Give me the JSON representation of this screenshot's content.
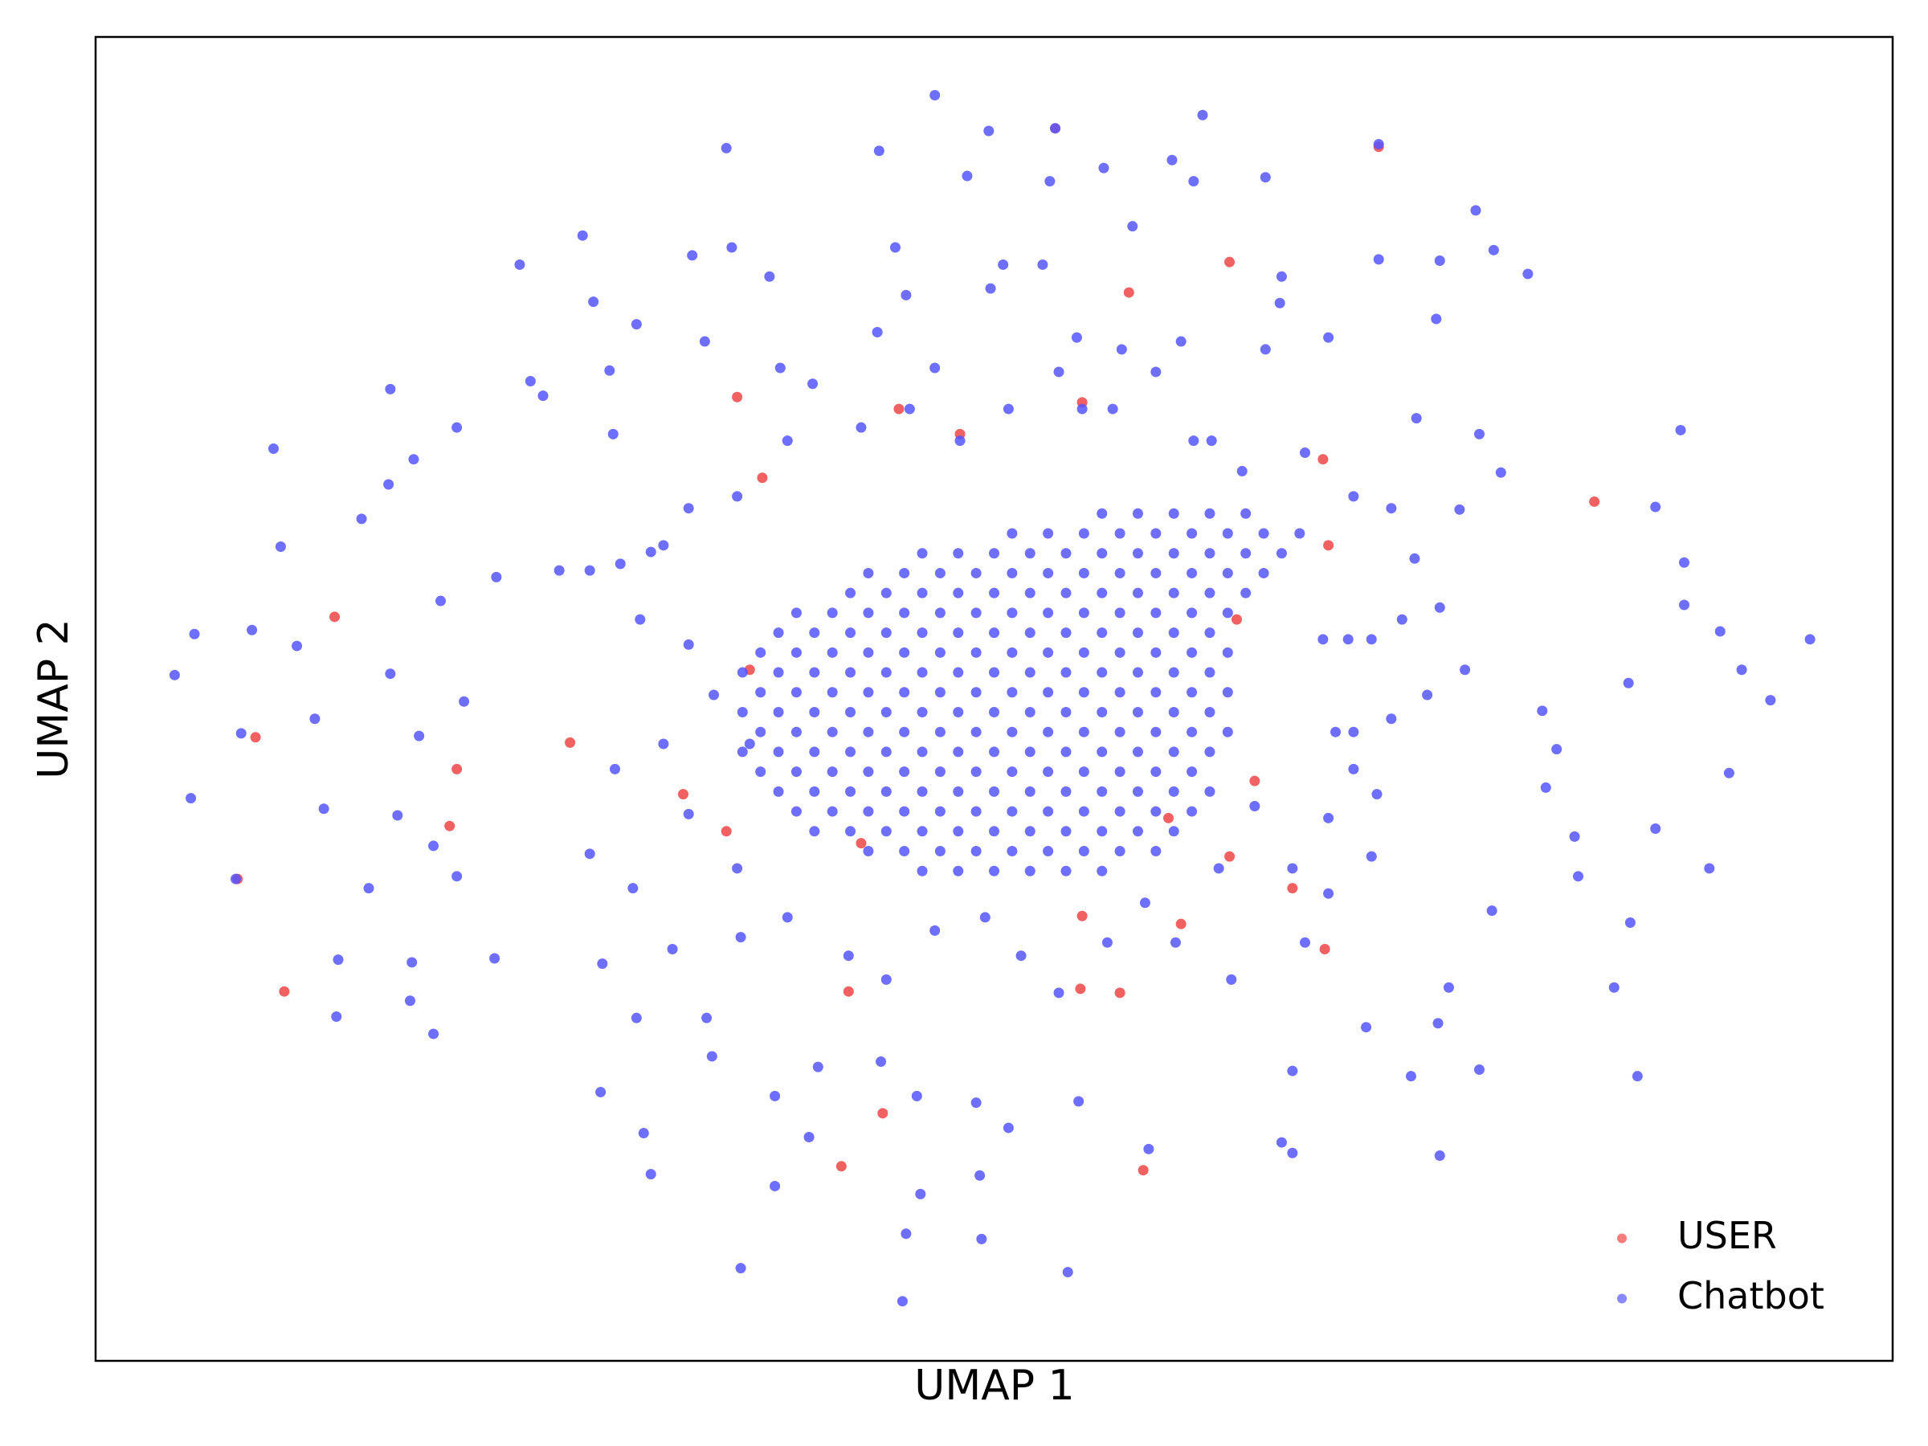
{
  "chart_data": {
    "type": "scatter",
    "xlabel": "UMAP 1",
    "ylabel": "UMAP 2",
    "xlim": [
      0,
      100
    ],
    "ylim": [
      0,
      100
    ],
    "legend": "lower right",
    "series": [
      {
        "name": "USER",
        "color": "#f04545",
        "x": [
          13.3,
          20.1,
          19.7,
          10.5,
          26.4,
          57.5,
          63.1,
          83.4,
          41.9,
          54.8,
          68.4,
          58.3,
          43.8,
          41.5,
          54.9,
          71.4,
          53.4,
          8.9,
          7.9,
          57.0,
          66.6,
          60.4,
          35.7,
          48.1,
          37.1,
          68.6,
          68.3,
          32.7,
          35.1,
          64.5,
          63.1,
          44.7,
          54.9,
          36.4,
          63.5,
          59.7,
          42.6
        ],
        "values": [
          56.2,
          44.7,
          40.4,
          27.9,
          46.7,
          80.7,
          83.0,
          64.9,
          27.9,
          28.1,
          31.1,
          14.4,
          18.7,
          14.7,
          33.6,
          91.7,
          93.1,
          47.1,
          36.4,
          27.8,
          35.7,
          33.0,
          72.8,
          70.0,
          66.7,
          61.6,
          68.1,
          42.8,
          40.0,
          43.8,
          38.1,
          71.9,
          72.4,
          52.2,
          56.0,
          41.0,
          39.1
        ]
      },
      {
        "name": "Chatbot",
        "color": "#5555ff",
        "x": [
          46.7,
          49.7,
          53.4,
          61.6,
          35.1,
          43.6,
          71.4,
          48.5,
          53.1,
          56.1,
          59.9,
          61.1,
          65.1,
          27.1,
          23.6,
          33.2,
          35.4,
          37.5,
          44.5,
          50.5,
          52.7,
          57.7,
          76.8,
          77.8,
          74.8,
          71.4,
          79.7,
          66.0,
          27.7,
          30.1,
          45.1,
          49.8,
          65.9,
          74.6,
          9.9,
          16.4,
          24.2,
          28.6,
          33.9,
          38.1,
          43.5,
          46.7,
          54.6,
          57.1,
          60.4,
          65.1,
          68.6,
          88.2,
          77.0,
          73.5,
          10.3,
          14.8,
          20.1,
          17.7,
          16.3,
          24.9,
          28.8,
          22.3,
          5.5,
          4.4,
          8.7,
          11.2,
          19.2,
          16.4,
          8.1,
          12.2,
          5.3,
          12.7,
          16.8,
          18.0,
          20.5,
          18.8,
          7.8,
          15.2,
          20.1,
          13.5,
          17.6,
          13.4,
          17.5,
          18.8,
          22.2,
          78.2,
          75.9,
          86.8,
          88.4,
          95.4,
          90.4,
          91.6,
          88.4,
          93.2,
          85.3,
          80.5,
          81.3,
          90.9,
          80.7,
          86.8,
          82.3,
          89.8,
          82.5,
          85.4,
          77.7,
          84.5,
          85.8,
          77.0,
          74.8,
          74.7,
          75.3,
          70.7,
          73.2,
          66.6,
          66.0,
          66.6,
          58.6,
          54.7,
          50.8,
          49.2,
          54.1,
          49.3,
          45.1,
          44.9,
          35.9,
          37.8,
          45.9,
          30.9,
          30.5,
          28.1,
          34.3,
          37.8,
          39.7,
          45.7,
          49.0,
          43.7,
          40.2,
          30.1,
          34.0,
          28.2,
          32.1,
          35.9,
          25.8,
          27.5,
          29.2,
          30.9,
          68.3,
          69.7,
          71.0,
          69.0,
          70.0,
          62.1,
          38.5,
          39.9,
          42.6,
          45.3,
          48.1,
          50.8,
          53.6,
          54.9,
          56.6,
          59.0,
          61.1,
          63.8,
          67.3,
          70.0,
          72.1,
          73.4,
          33.0,
          35.7,
          31.6,
          30.3,
          33.0,
          34.4,
          31.6,
          28.9,
          27.5,
          29.9,
          33.0,
          35.7,
          38.5,
          41.9,
          44.0,
          46.7,
          49.5,
          51.5,
          53.6,
          56.3,
          58.4,
          60.1,
          62.5,
          64.5,
          66.6,
          68.6,
          70.0,
          63.2,
          67.3,
          68.6,
          36.4,
          72.1,
          72.7,
          74.8,
          76.2,
          74.1,
          71.3,
          71.0,
          56,
          58,
          60,
          62,
          64,
          51,
          53,
          55,
          57,
          59,
          61,
          63,
          65,
          67,
          46,
          48,
          50,
          52,
          54,
          56,
          58,
          60,
          62,
          64,
          66,
          43,
          45,
          47,
          49,
          51,
          53,
          55,
          57,
          59,
          61,
          63,
          65,
          42,
          44,
          46,
          48,
          50,
          52,
          54,
          56,
          58,
          60,
          62,
          64,
          39,
          41,
          43,
          45,
          47,
          49,
          51,
          53,
          55,
          57,
          59,
          61,
          63,
          38,
          40,
          42,
          44,
          46,
          48,
          50,
          52,
          54,
          56,
          58,
          60,
          62,
          37,
          39,
          41,
          43,
          45,
          47,
          49,
          51,
          53,
          55,
          57,
          59,
          61,
          63,
          36,
          38,
          40,
          42,
          44,
          46,
          48,
          50,
          52,
          54,
          56,
          58,
          60,
          62,
          37,
          39,
          41,
          43,
          45,
          47,
          49,
          51,
          53,
          55,
          57,
          59,
          61,
          63,
          36,
          38,
          40,
          42,
          44,
          46,
          48,
          50,
          52,
          54,
          56,
          58,
          60,
          62,
          37,
          39,
          41,
          43,
          45,
          47,
          49,
          51,
          53,
          55,
          57,
          59,
          61,
          63,
          36,
          38,
          40,
          42,
          44,
          46,
          48,
          50,
          52,
          54,
          56,
          58,
          60,
          62,
          37,
          39,
          41,
          43,
          45,
          47,
          49,
          51,
          53,
          55,
          57,
          59,
          61,
          38,
          40,
          42,
          44,
          46,
          48,
          50,
          52,
          54,
          56,
          58,
          60,
          62,
          39,
          41,
          43,
          45,
          47,
          49,
          51,
          53,
          55,
          57,
          59,
          61,
          40,
          42,
          44,
          46,
          48,
          50,
          52,
          54,
          56,
          58,
          60,
          43,
          45,
          47,
          49,
          51,
          53,
          55,
          57,
          59,
          46,
          48,
          50,
          52,
          54,
          56
        ],
        "values": [
          95.6,
          92.9,
          93.1,
          94.1,
          91.6,
          91.4,
          91.9,
          89.5,
          89.1,
          90.1,
          90.7,
          89.1,
          89.4,
          85.0,
          82.8,
          83.5,
          84.1,
          81.9,
          84.1,
          82.8,
          82.8,
          85.7,
          86.9,
          83.9,
          83.1,
          83.2,
          82.1,
          81.9,
          80.0,
          78.3,
          80.5,
          81.0,
          79.9,
          78.7,
          68.9,
          73.4,
          74.0,
          74.8,
          77.0,
          75.0,
          77.7,
          75.0,
          77.3,
          76.4,
          77.0,
          76.4,
          77.3,
          70.3,
          70.0,
          71.2,
          61.5,
          63.6,
          70.5,
          68.1,
          66.2,
          72.9,
          70.0,
          59.2,
          54.9,
          51.8,
          55.2,
          54.0,
          57.4,
          51.9,
          47.4,
          48.5,
          42.5,
          41.7,
          41.2,
          47.2,
          49.8,
          38.9,
          36.4,
          35.7,
          36.6,
          30.3,
          30.1,
          26.0,
          27.2,
          24.7,
          30.4,
          67.1,
          64.3,
          64.5,
          60.3,
          54.5,
          55.1,
          52.2,
          57.1,
          49.9,
          51.2,
          49.1,
          46.2,
          44.4,
          43.3,
          40.2,
          39.6,
          37.2,
          36.6,
          33.1,
          34.0,
          28.2,
          21.5,
          22.0,
          15.5,
          25.5,
          28.2,
          25.2,
          21.5,
          21.9,
          16.5,
          15.7,
          16.0,
          19.6,
          17.6,
          14.0,
          6.7,
          9.2,
          9.6,
          4.5,
          7.0,
          13.2,
          12.6,
          14.1,
          17.2,
          20.3,
          23.0,
          20.0,
          16.9,
          20.0,
          19.5,
          22.6,
          22.2,
          25.9,
          25.9,
          30.0,
          31.1,
          32.0,
          59.7,
          59.7,
          60.2,
          61.1,
          54.5,
          54.5,
          54.5,
          47.5,
          47.5,
          69.5,
          69.5,
          73.8,
          70.5,
          71.9,
          69.5,
          71.9,
          74.7,
          71.9,
          71.9,
          74.7,
          69.5,
          67.2,
          68.6,
          65.3,
          64.4,
          60.6,
          64.4,
          65.3,
          61.6,
          56.0,
          54.1,
          50.3,
          46.6,
          44.7,
          38.3,
          35.7,
          41.3,
          37.2,
          33.5,
          30.6,
          28.8,
          32.5,
          33.5,
          30.6,
          27.8,
          31.6,
          34.6,
          31.6,
          37.2,
          41.9,
          37.2,
          41.0,
          44.7,
          28.8,
          31.6,
          35.3,
          46.6,
          48.5,
          56.0,
          56.9,
          52.2,
          50.3,
          42.8,
          38.1,
          64,
          64,
          64,
          64,
          64,
          62.5,
          62.5,
          62.5,
          62.5,
          62.5,
          62.5,
          62.5,
          62.5,
          62.5,
          61,
          61,
          61,
          61,
          61,
          61,
          61,
          61,
          61,
          61,
          61,
          59.5,
          59.5,
          59.5,
          59.5,
          59.5,
          59.5,
          59.5,
          59.5,
          59.5,
          59.5,
          59.5,
          59.5,
          58,
          58,
          58,
          58,
          58,
          58,
          58,
          58,
          58,
          58,
          58,
          58,
          56.5,
          56.5,
          56.5,
          56.5,
          56.5,
          56.5,
          56.5,
          56.5,
          56.5,
          56.5,
          56.5,
          56.5,
          56.5,
          55,
          55,
          55,
          55,
          55,
          55,
          55,
          55,
          55,
          55,
          55,
          55,
          55,
          53.5,
          53.5,
          53.5,
          53.5,
          53.5,
          53.5,
          53.5,
          53.5,
          53.5,
          53.5,
          53.5,
          53.5,
          53.5,
          53.5,
          52,
          52,
          52,
          52,
          52,
          52,
          52,
          52,
          52,
          52,
          52,
          52,
          52,
          52,
          50.5,
          50.5,
          50.5,
          50.5,
          50.5,
          50.5,
          50.5,
          50.5,
          50.5,
          50.5,
          50.5,
          50.5,
          50.5,
          50.5,
          49,
          49,
          49,
          49,
          49,
          49,
          49,
          49,
          49,
          49,
          49,
          49,
          49,
          49,
          47.5,
          47.5,
          47.5,
          47.5,
          47.5,
          47.5,
          47.5,
          47.5,
          47.5,
          47.5,
          47.5,
          47.5,
          47.5,
          47.5,
          46,
          46,
          46,
          46,
          46,
          46,
          46,
          46,
          46,
          46,
          46,
          46,
          46,
          46,
          44.5,
          44.5,
          44.5,
          44.5,
          44.5,
          44.5,
          44.5,
          44.5,
          44.5,
          44.5,
          44.5,
          44.5,
          44.5,
          43,
          43,
          43,
          43,
          43,
          43,
          43,
          43,
          43,
          43,
          43,
          43,
          43,
          41.5,
          41.5,
          41.5,
          41.5,
          41.5,
          41.5,
          41.5,
          41.5,
          41.5,
          41.5,
          41.5,
          41.5,
          40,
          40,
          40,
          40,
          40,
          40,
          40,
          40,
          40,
          40,
          40,
          38.5,
          38.5,
          38.5,
          38.5,
          38.5,
          38.5,
          38.5,
          38.5,
          38.5,
          37,
          37,
          37,
          37,
          37,
          37
        ]
      }
    ]
  }
}
